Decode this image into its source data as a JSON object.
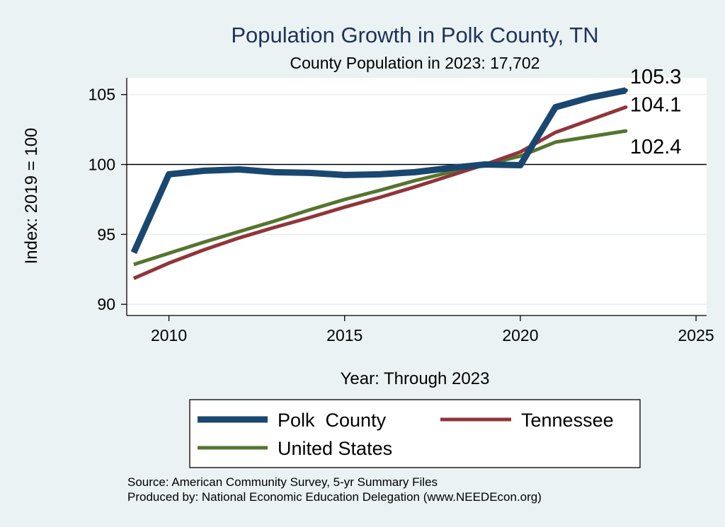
{
  "chart_data": {
    "type": "line",
    "title": "Population Growth in Polk County, TN",
    "subtitle": "County Population in 2023: 17,702",
    "xlabel": "Year: Through 2023",
    "ylabel": "Index: 2019 = 100",
    "xlim": [
      2008.8,
      2025.3
    ],
    "ylim": [
      89.2,
      106.2
    ],
    "xticks": [
      2010,
      2015,
      2020,
      2025
    ],
    "yticks": [
      90,
      95,
      100,
      105
    ],
    "reference_line": 100,
    "x": [
      2009,
      2010,
      2011,
      2012,
      2013,
      2014,
      2015,
      2016,
      2017,
      2018,
      2019,
      2020,
      2021,
      2022,
      2023
    ],
    "series": [
      {
        "name": "Polk  County",
        "color": "#1a476f",
        "values": [
          93.7,
          99.3,
          99.55,
          99.65,
          99.45,
          99.4,
          99.25,
          99.3,
          99.45,
          99.75,
          100.0,
          99.95,
          104.1,
          104.8,
          105.3
        ],
        "end_label": "105.3"
      },
      {
        "name": "Tennessee",
        "color": "#90353b",
        "values": [
          91.85,
          92.95,
          93.9,
          94.75,
          95.5,
          96.2,
          96.95,
          97.65,
          98.4,
          99.2,
          100.0,
          100.9,
          102.3,
          103.2,
          104.1
        ],
        "end_label": "104.1"
      },
      {
        "name": "United States",
        "color": "#55752f",
        "values": [
          92.85,
          93.65,
          94.45,
          95.2,
          95.95,
          96.75,
          97.5,
          98.15,
          98.85,
          99.45,
          100.0,
          100.6,
          101.6,
          102.0,
          102.4
        ],
        "end_label": "102.4"
      }
    ]
  },
  "footer": {
    "source": "Source: American Community Survey, 5-yr Summary Files",
    "produced_by": "Produced by: National Economic Education Delegation (www.NEEDEcon.org)"
  }
}
